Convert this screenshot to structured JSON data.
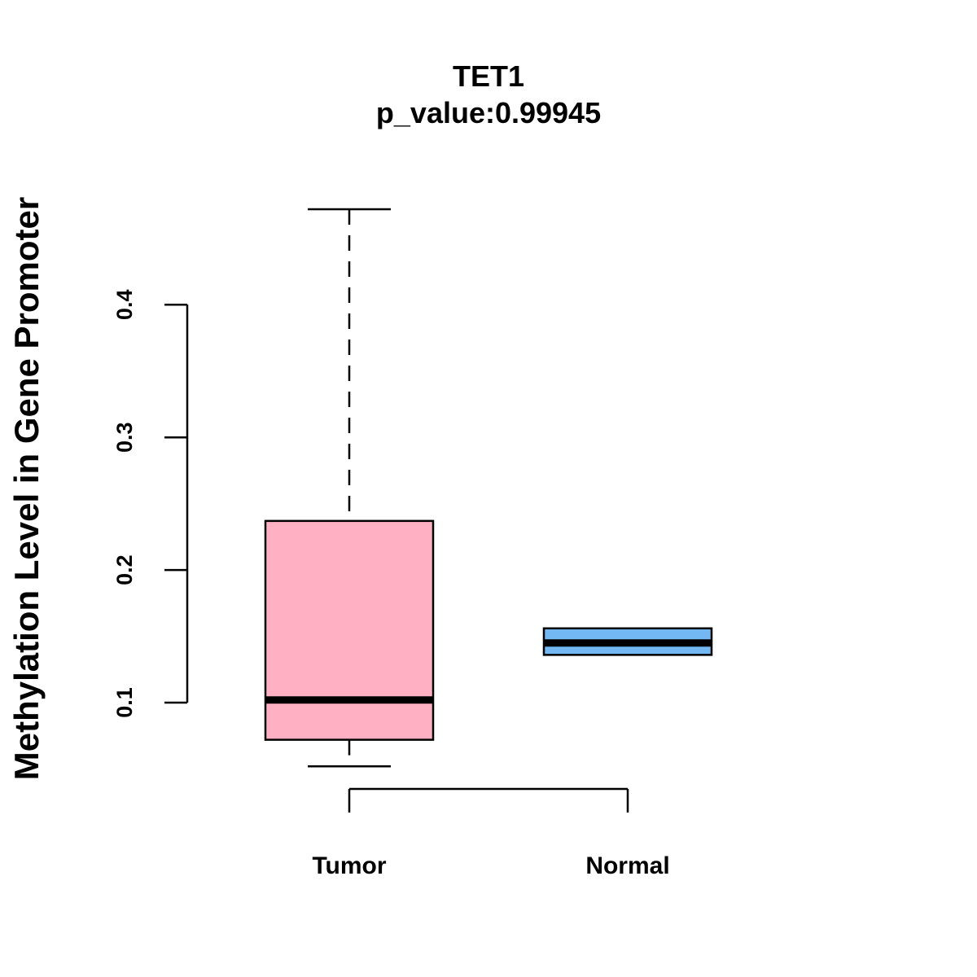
{
  "chart_data": {
    "type": "boxplot",
    "title": "TET1",
    "subtitle": "p_value:0.99945",
    "xlabel": "",
    "ylabel": "Methylation Level in Gene Promoter",
    "categories": [
      "Tumor",
      "Normal"
    ],
    "yticks": [
      "0.1",
      "0.2",
      "0.3",
      "0.4"
    ],
    "ytick_values": [
      0.1,
      0.2,
      0.3,
      0.4
    ],
    "ylim": [
      0.1,
      0.4
    ],
    "series": [
      {
        "name": "Tumor",
        "whisker_low": 0.052,
        "q1": 0.072,
        "median": 0.102,
        "q3": 0.237,
        "whisker_high": 0.472,
        "color": "#FFB0C2"
      },
      {
        "name": "Normal",
        "whisker_low": 0.136,
        "q1": 0.136,
        "median": 0.145,
        "q3": 0.156,
        "whisker_high": 0.156,
        "color": "#73B8F3"
      }
    ],
    "grid": false,
    "legend": "none"
  }
}
